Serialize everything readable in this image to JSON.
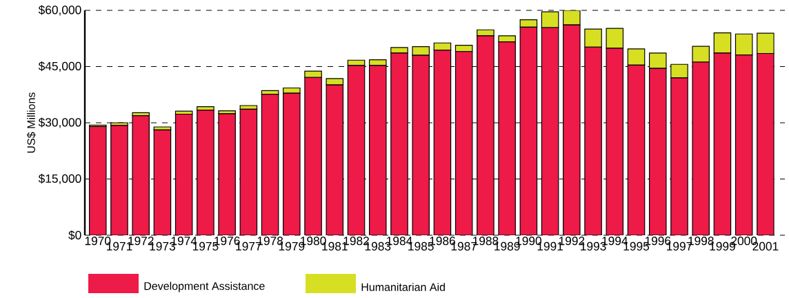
{
  "chart_data": {
    "type": "bar",
    "stacked": true,
    "ylabel": "US$ Millions",
    "categories": [
      "1970",
      "1971",
      "1972",
      "1973",
      "1974",
      "1975",
      "1976",
      "1977",
      "1978",
      "1979",
      "1980",
      "1981",
      "1982",
      "1983",
      "1984",
      "1985",
      "1986",
      "1987",
      "1988",
      "1989",
      "1990",
      "1991",
      "1992",
      "1993",
      "1994",
      "1995",
      "1996",
      "1997",
      "1998",
      "1999",
      "2000",
      "2001"
    ],
    "series": [
      {
        "name": "Development Assistance",
        "color": "#ee1a48",
        "values": [
          29000,
          29300,
          31900,
          28100,
          32300,
          33400,
          32400,
          33600,
          37600,
          37900,
          42100,
          40100,
          45300,
          45300,
          48600,
          48000,
          49400,
          49000,
          53200,
          51600,
          55500,
          55400,
          56100,
          50200,
          49900,
          45400,
          44500,
          42000,
          46200,
          48600,
          48100,
          48500
        ]
      },
      {
        "name": "Humanitarian Aid",
        "color": "#d7df23",
        "values": [
          400,
          700,
          800,
          800,
          800,
          900,
          800,
          1000,
          1000,
          1400,
          1700,
          1700,
          1400,
          1500,
          1500,
          2300,
          1900,
          1700,
          1600,
          1600,
          2000,
          4200,
          3900,
          4800,
          5300,
          4300,
          4100,
          3600,
          4200,
          5400,
          5600,
          5400
        ]
      }
    ],
    "ylim": [
      0,
      60000
    ],
    "yticks": [
      {
        "value": 0,
        "label": "$0"
      },
      {
        "value": 15000,
        "label": "$15,000"
      },
      {
        "value": 30000,
        "label": "$30,000"
      },
      {
        "value": 45000,
        "label": "$45,000"
      },
      {
        "value": 60000,
        "label": "$60,000"
      }
    ],
    "grid": "y",
    "legend": "bottom left"
  }
}
